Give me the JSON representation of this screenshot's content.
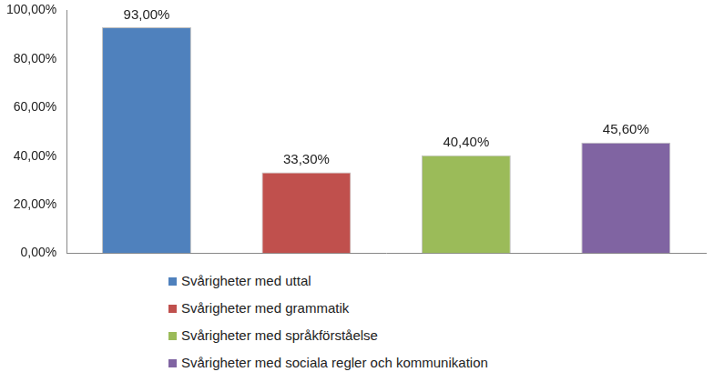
{
  "chart_data": {
    "type": "bar",
    "categories": [
      "Svårigheter med uttal",
      "Svårigheter med grammatik",
      "Svårigheter med språkförståelse",
      "Svårigheter med sociala regler och kommunikation"
    ],
    "values": [
      93,
      33.3,
      40.4,
      45.6
    ],
    "value_labels": [
      "93,00%",
      "33,30%",
      "40,40%",
      "45,60%"
    ],
    "colors": [
      "#4f81bd",
      "#c0504d",
      "#9bbb59",
      "#8064a2"
    ],
    "ylim": [
      0,
      100
    ],
    "yticks": [
      {
        "value": 0,
        "label": "0,00%"
      },
      {
        "value": 20,
        "label": "20,00%"
      },
      {
        "value": 40,
        "label": "40,00%"
      },
      {
        "value": 60,
        "label": "60,00%"
      },
      {
        "value": 80,
        "label": "80,00%"
      },
      {
        "value": 100,
        "label": "100,00%"
      }
    ],
    "grid": false,
    "legend": "bottom",
    "data_labels": true,
    "tick_labels": "y"
  }
}
